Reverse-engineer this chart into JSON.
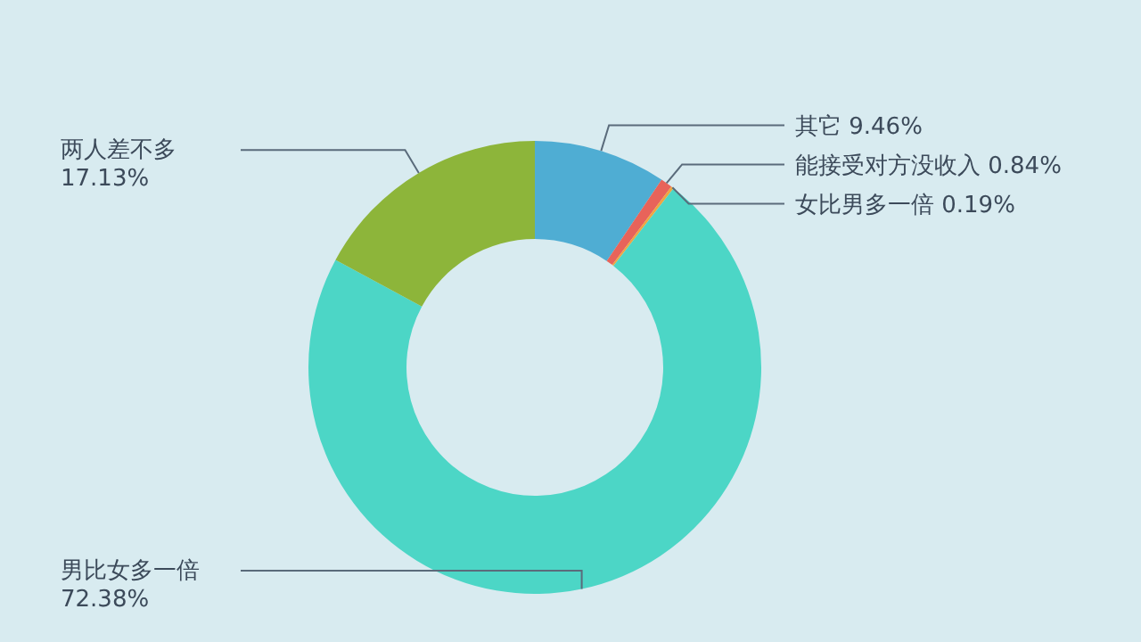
{
  "chart_data": {
    "type": "donut",
    "categories": [
      "其它",
      "能接受对方没收入",
      "女比男多一倍",
      "男比女多一倍",
      "两人差不多"
    ],
    "values": [
      9.46,
      0.84,
      0.19,
      72.38,
      17.13
    ],
    "value_labels": [
      "9.46%",
      "0.84%",
      "0.19%",
      "72.38%",
      "17.13%"
    ],
    "colors": [
      "#4fadd3",
      "#e8635a",
      "#f0a540",
      "#4cd6c6",
      "#8db53a"
    ]
  }
}
